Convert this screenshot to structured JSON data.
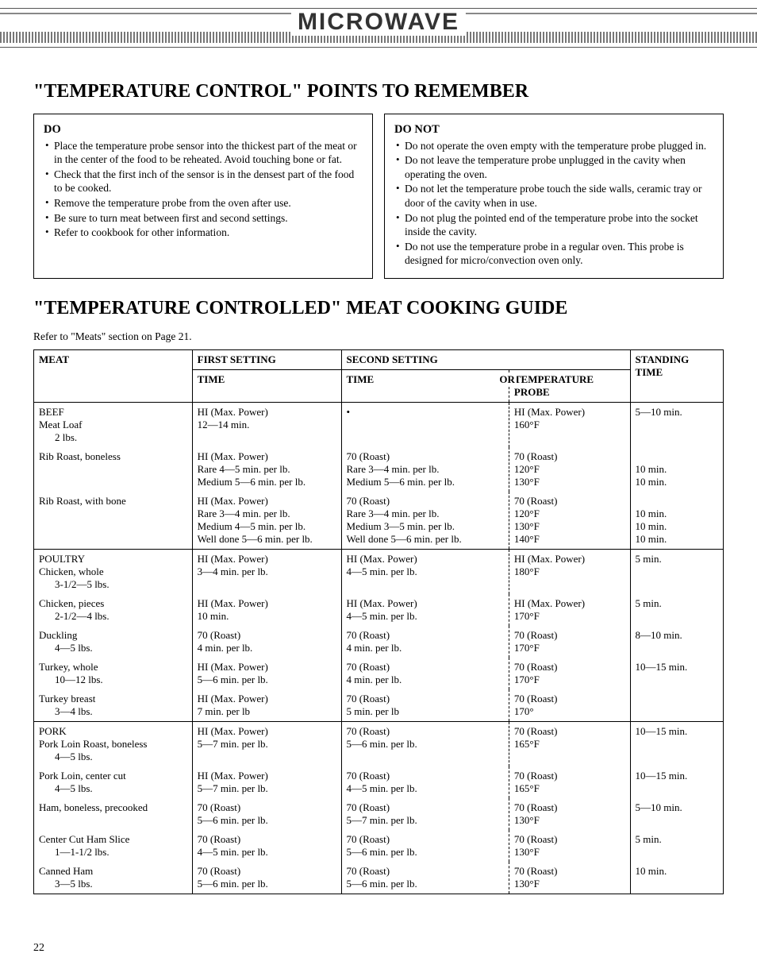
{
  "header": {
    "title": "MICROWAVE"
  },
  "section1": {
    "title": "\"TEMPERATURE CONTROL\" POINTS TO REMEMBER",
    "do": {
      "title": "DO",
      "items": [
        "Place the temperature probe sensor into the thickest part of the meat or in the center of the food to be reheated. Avoid touching bone or fat.",
        "Check that the first inch of the sensor is in the densest part of the food to be cooked.",
        "Remove the temperature probe from the oven after use.",
        "Be sure to turn meat between first and second settings.",
        "Refer to cookbook for other information."
      ]
    },
    "donot": {
      "title": "DO NOT",
      "items": [
        "Do not operate the oven empty with the temperature probe plugged in.",
        "Do not leave the temperature probe unplugged in the cavity when operating the oven.",
        "Do not let the temperature probe touch the side walls, ceramic tray or door of the cavity when in use.",
        "Do not plug the pointed end of the temperature probe into the socket inside the cavity.",
        "Do not use the temperature probe in a regular oven. This probe is designed for micro/convection oven only."
      ]
    }
  },
  "section2": {
    "title": "\"TEMPERATURE CONTROLLED\" MEAT COOKING GUIDE",
    "subtext": "Refer to \"Meats\" section on Page 21.",
    "headers": {
      "meat": "MEAT",
      "first": "FIRST SETTING",
      "second": "SECOND SETTING",
      "standing": "STANDING TIME",
      "time": "TIME",
      "time2": "TIME",
      "or": "OR",
      "probe": "TEMPERATURE PROBE"
    },
    "rows": [
      {
        "cat": "BEEF",
        "break": true,
        "name": "Meat Loaf",
        "sub": "2 lbs.",
        "first": "HI (Max. Power)\n12—14 min.",
        "time2": "•",
        "probe": "HI (Max. Power)\n160°F",
        "stand": "5—10 min."
      },
      {
        "name": "Rib Roast, boneless",
        "space": true,
        "first": "HI (Max. Power)\nRare 4—5 min. per lb.\nMedium 5—6 min. per lb.",
        "time2": "70 (Roast)\nRare 3—4 min. per lb.\nMedium 5—6 min. per lb.",
        "probe": "70 (Roast)\n120°F\n130°F",
        "stand": "\n10 min.\n10 min."
      },
      {
        "name": "Rib Roast, with bone",
        "space": true,
        "first": "HI (Max. Power)\nRare 3—4 min. per lb.\nMedium 4—5 min. per lb.\nWell done 5—6 min. per lb.",
        "time2": "70 (Roast)\nRare 3—4 min. per lb.\nMedium 3—5 min. per lb.\nWell done 5—6 min. per lb.",
        "probe": "70 (Roast)\n120°F\n130°F\n140°F",
        "stand": "\n10 min.\n10 min.\n10 min."
      },
      {
        "cat": "POULTRY",
        "break": true,
        "name": "Chicken, whole",
        "sub": "3-1/2—5 lbs.",
        "first": "HI (Max. Power)\n3—4 min. per lb.",
        "time2": "HI (Max. Power)\n4—5 min. per lb.",
        "probe": "HI (Max. Power)\n180°F",
        "stand": "5 min."
      },
      {
        "name": "Chicken, pieces",
        "sub": "2-1/2—4 lbs.",
        "space": true,
        "first": "HI (Max. Power)\n10 min.",
        "time2": "HI (Max. Power)\n4—5 min. per lb.",
        "probe": "HI (Max. Power)\n170°F",
        "stand": "5 min."
      },
      {
        "name": "Duckling",
        "sub": "4—5 lbs.",
        "space": true,
        "first": "70 (Roast)\n4 min. per lb.",
        "time2": "70 (Roast)\n4 min. per lb.",
        "probe": "70 (Roast)\n170°F",
        "stand": "8—10 min."
      },
      {
        "name": "Turkey, whole",
        "sub": "10—12 lbs.",
        "space": true,
        "first": "HI (Max. Power)\n5—6 min. per lb.",
        "time2": "70 (Roast)\n4 min. per lb.",
        "probe": "70 (Roast)\n170°F",
        "stand": "10—15 min."
      },
      {
        "name": "Turkey breast",
        "sub": "3—4 lbs.",
        "space": true,
        "first": "HI (Max. Power)\n7 min. per lb",
        "time2": "70 (Roast)\n5 min. per lb",
        "probe": "70 (Roast)\n170°",
        "stand": ""
      },
      {
        "cat": "PORK",
        "break": true,
        "name": "Pork Loin Roast, boneless",
        "sub": "4—5 lbs.",
        "first": "HI (Max. Power)\n5—7 min. per lb.",
        "time2": "70 (Roast)\n5—6 min. per lb.",
        "probe": "70 (Roast)\n165°F",
        "stand": "10—15 min."
      },
      {
        "name": "Pork Loin, center cut",
        "sub": "4—5 lbs.",
        "space": true,
        "first": "HI (Max. Power)\n5—7 min. per lb.",
        "time2": "70 (Roast)\n4—5 min. per lb.",
        "probe": "70 (Roast)\n165°F",
        "stand": "10—15 min."
      },
      {
        "name": "Ham, boneless, precooked",
        "space": true,
        "first": "70 (Roast)\n5—6 min. per lb.",
        "time2": "70 (Roast)\n5—7 min. per lb.",
        "probe": "70 (Roast)\n130°F",
        "stand": "5—10 min."
      },
      {
        "name": "Center Cut Ham Slice",
        "sub": "1—1-1/2 lbs.",
        "space": true,
        "first": "70 (Roast)\n4—5 min. per lb.",
        "time2": "70 (Roast)\n5—6 min. per lb.",
        "probe": "70 (Roast)\n130°F",
        "stand": "5 min."
      },
      {
        "name": "Canned Ham",
        "sub": "3—5 lbs.",
        "space": true,
        "first": "70 (Roast)\n5—6 min. per lb.",
        "time2": "70 (Roast)\n5—6 min. per lb.",
        "probe": "70 (Roast)\n130°F",
        "stand": "10 min."
      }
    ]
  },
  "pageNumber": "22"
}
